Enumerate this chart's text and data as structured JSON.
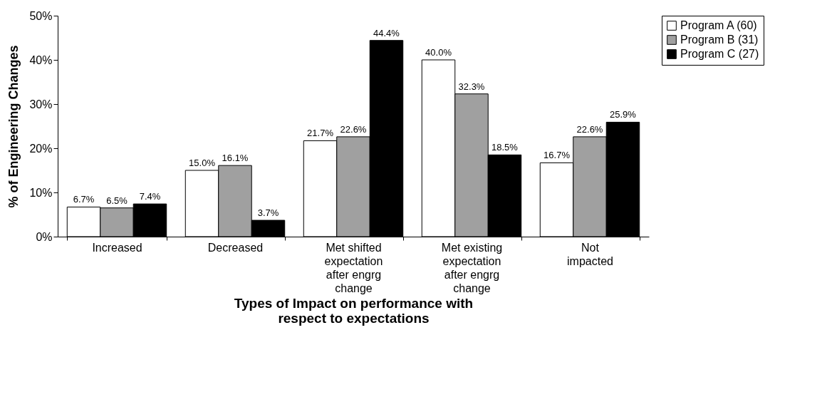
{
  "chart_data": {
    "type": "bar",
    "xlabel": "Types of Impact on performance with\nrespect to expectations",
    "ylabel": "% of Engineering Changes",
    "categories": [
      "Increased",
      "Decreased",
      "Met shifted\nexpectation\nafter engrg\nchange",
      "Met existing\nexpectation\nafter engrg\nchange",
      "Not\nimpacted"
    ],
    "series": [
      {
        "name": "Program A (60)",
        "color": "#ffffff",
        "values": [
          6.7,
          15.0,
          21.7,
          40.0,
          16.7
        ],
        "value_labels": [
          "6.7%",
          "15.0%",
          "21.7%",
          "40.0%",
          "16.7%"
        ]
      },
      {
        "name": "Program B (31)",
        "color": "#a0a0a0",
        "values": [
          6.5,
          16.1,
          22.6,
          32.3,
          22.6
        ],
        "value_labels": [
          "6.5%",
          "16.1%",
          "22.6%",
          "32.3%",
          "22.6%"
        ]
      },
      {
        "name": "Program C (27)",
        "color": "#000000",
        "values": [
          7.4,
          3.7,
          44.4,
          18.5,
          25.9
        ],
        "value_labels": [
          "7.4%",
          "3.7%",
          "44.4%",
          "18.5%",
          "25.9%"
        ]
      }
    ],
    "ylim": [
      0,
      50
    ],
    "yticks": [
      {
        "value": 0,
        "label": "0%"
      },
      {
        "value": 10,
        "label": "10%"
      },
      {
        "value": 20,
        "label": "20%"
      },
      {
        "value": 30,
        "label": "30%"
      },
      {
        "value": 40,
        "label": "40%"
      },
      {
        "value": 50,
        "label": "50%"
      }
    ],
    "legend": "right"
  }
}
